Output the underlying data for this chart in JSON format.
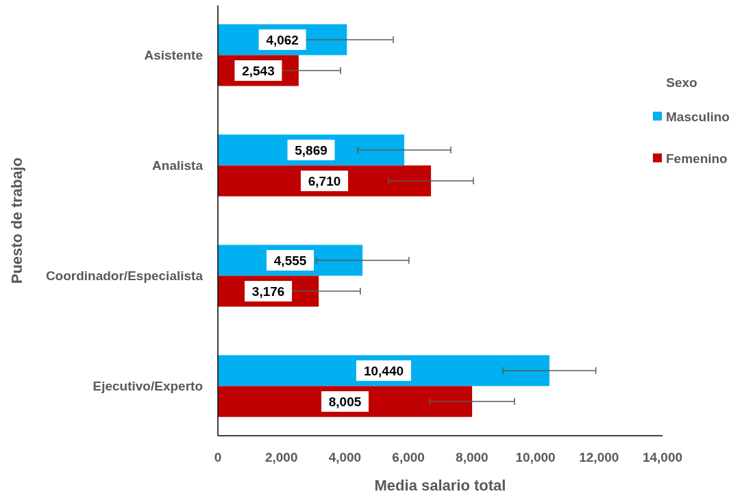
{
  "chart_data": {
    "type": "bar",
    "orientation": "horizontal",
    "xlabel": "Media salario total",
    "ylabel": "Puesto de trabajo",
    "legend_title": "Sexo",
    "legend": "right",
    "grid": false,
    "categories": [
      "Asistente",
      "Analista",
      "Coordinador/Especialista",
      "Ejecutivo/Experto"
    ],
    "xlim": [
      0,
      14000
    ],
    "xticks": [
      {
        "value": 0,
        "label": "0"
      },
      {
        "value": 2000,
        "label": "2,000"
      },
      {
        "value": 4000,
        "label": "4,000"
      },
      {
        "value": 6000,
        "label": "6,000"
      },
      {
        "value": 8000,
        "label": "8,000"
      },
      {
        "value": 10000,
        "label": "10,000"
      },
      {
        "value": 12000,
        "label": "12,000"
      },
      {
        "value": 14000,
        "label": "14,000"
      }
    ],
    "series": [
      {
        "name": "Masculino",
        "color": "#00b0f0",
        "values": [
          4062,
          5869,
          4555,
          10440
        ],
        "value_labels": [
          "4,062",
          "5,869",
          "4,555",
          "10,440"
        ],
        "errors": [
          1460,
          1465,
          1460,
          1460
        ]
      },
      {
        "name": "Femenino",
        "color": "#c00000",
        "values": [
          2543,
          6710,
          3176,
          8005
        ],
        "value_labels": [
          "2,543",
          "6,710",
          "3,176",
          "8,005"
        ],
        "errors": [
          1320,
          1335,
          1310,
          1335
        ]
      }
    ]
  }
}
